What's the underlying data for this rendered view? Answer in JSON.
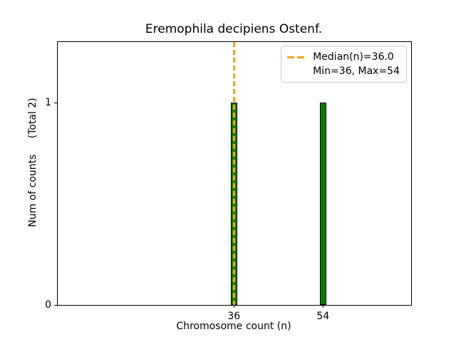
{
  "title": "Eremophila decipiens Ostenf.",
  "xlabel": "Chromosome count (n)",
  "ylabel": "Num of counts     (Total 2)",
  "legend": {
    "line1": "Median(n)=36.0",
    "line2": "Min=36, Max=54"
  },
  "colors": {
    "bar_fill": "#008000",
    "bar_edge": "#000000",
    "median_line": "#FFA500",
    "axis": "#000000",
    "legend_border": "#cccccc",
    "text": "#000000",
    "background": "#ffffff"
  },
  "chart_data": {
    "type": "bar",
    "title": "Eremophila decipiens Ostenf.",
    "xlabel": "Chromosome count (n)",
    "ylabel": "Num of counts     (Total 2)",
    "categories": [
      36,
      54
    ],
    "values": [
      1,
      1
    ],
    "bar_width": 1.3,
    "median": 36.0,
    "min": 36,
    "max": 54,
    "total_counts": 2,
    "xlim": [
      0.4,
      71.8
    ],
    "ylim": [
      0,
      1.3
    ],
    "x_ticks": [
      36,
      54
    ],
    "y_ticks": [
      0,
      1
    ],
    "grid": false,
    "legend_position": "upper right"
  }
}
